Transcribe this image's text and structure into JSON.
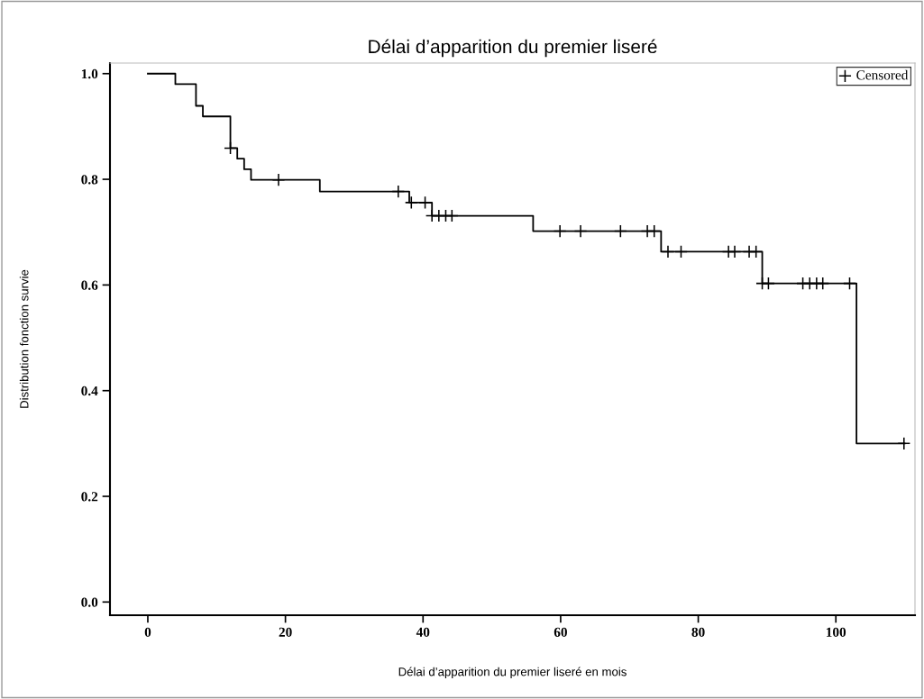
{
  "chart_data": {
    "type": "step",
    "title": "Délai d’apparition du premier liseré",
    "xlabel": "Délai d’apparition du premier liseré en mois",
    "ylabel": "Distribution fonction survie",
    "xlim": [
      -5.5,
      111.5
    ],
    "xticks": [
      0,
      20,
      40,
      60,
      80,
      100
    ],
    "ylim": [
      -0.025,
      1.02
    ],
    "yticks": [
      {
        "value": 0,
        "label": "0.0"
      },
      0.2,
      0.4,
      0.6,
      0.8,
      {
        "value": 1,
        "label": "1.0"
      }
    ],
    "grid": false,
    "legend": "top right",
    "series": [
      {
        "color": "#000000",
        "x": [
          0,
          4,
          7,
          8,
          12,
          13,
          14,
          15,
          25,
          38,
          41.3,
          56,
          74.6,
          89.3,
          103,
          110
        ],
        "values": [
          1.0,
          0.98,
          0.939,
          0.919,
          0.859,
          0.839,
          0.819,
          0.799,
          0.777,
          0.756,
          0.731,
          0.702,
          0.663,
          0.603,
          0.3,
          0.3
        ]
      },
      {
        "type": "scatter",
        "name": "Censored",
        "color": "#000000",
        "marker": "cross",
        "x": [
          12,
          19,
          36.4,
          38.3,
          40.3,
          41.3,
          42.3,
          43.3,
          44.2,
          59.9,
          62.9,
          68.7,
          72.6,
          73.6,
          75.6,
          77.5,
          84.4,
          85.3,
          87.4,
          88.4,
          89.3,
          90.2,
          95.2,
          96.2,
          97.2,
          98.1,
          102,
          109.9
        ],
        "values": [
          0.859,
          0.799,
          0.777,
          0.756,
          0.756,
          0.731,
          0.731,
          0.731,
          0.731,
          0.702,
          0.702,
          0.702,
          0.702,
          0.702,
          0.663,
          0.663,
          0.663,
          0.663,
          0.663,
          0.663,
          0.603,
          0.603,
          0.603,
          0.603,
          0.603,
          0.603,
          0.603,
          0.3
        ]
      }
    ]
  }
}
